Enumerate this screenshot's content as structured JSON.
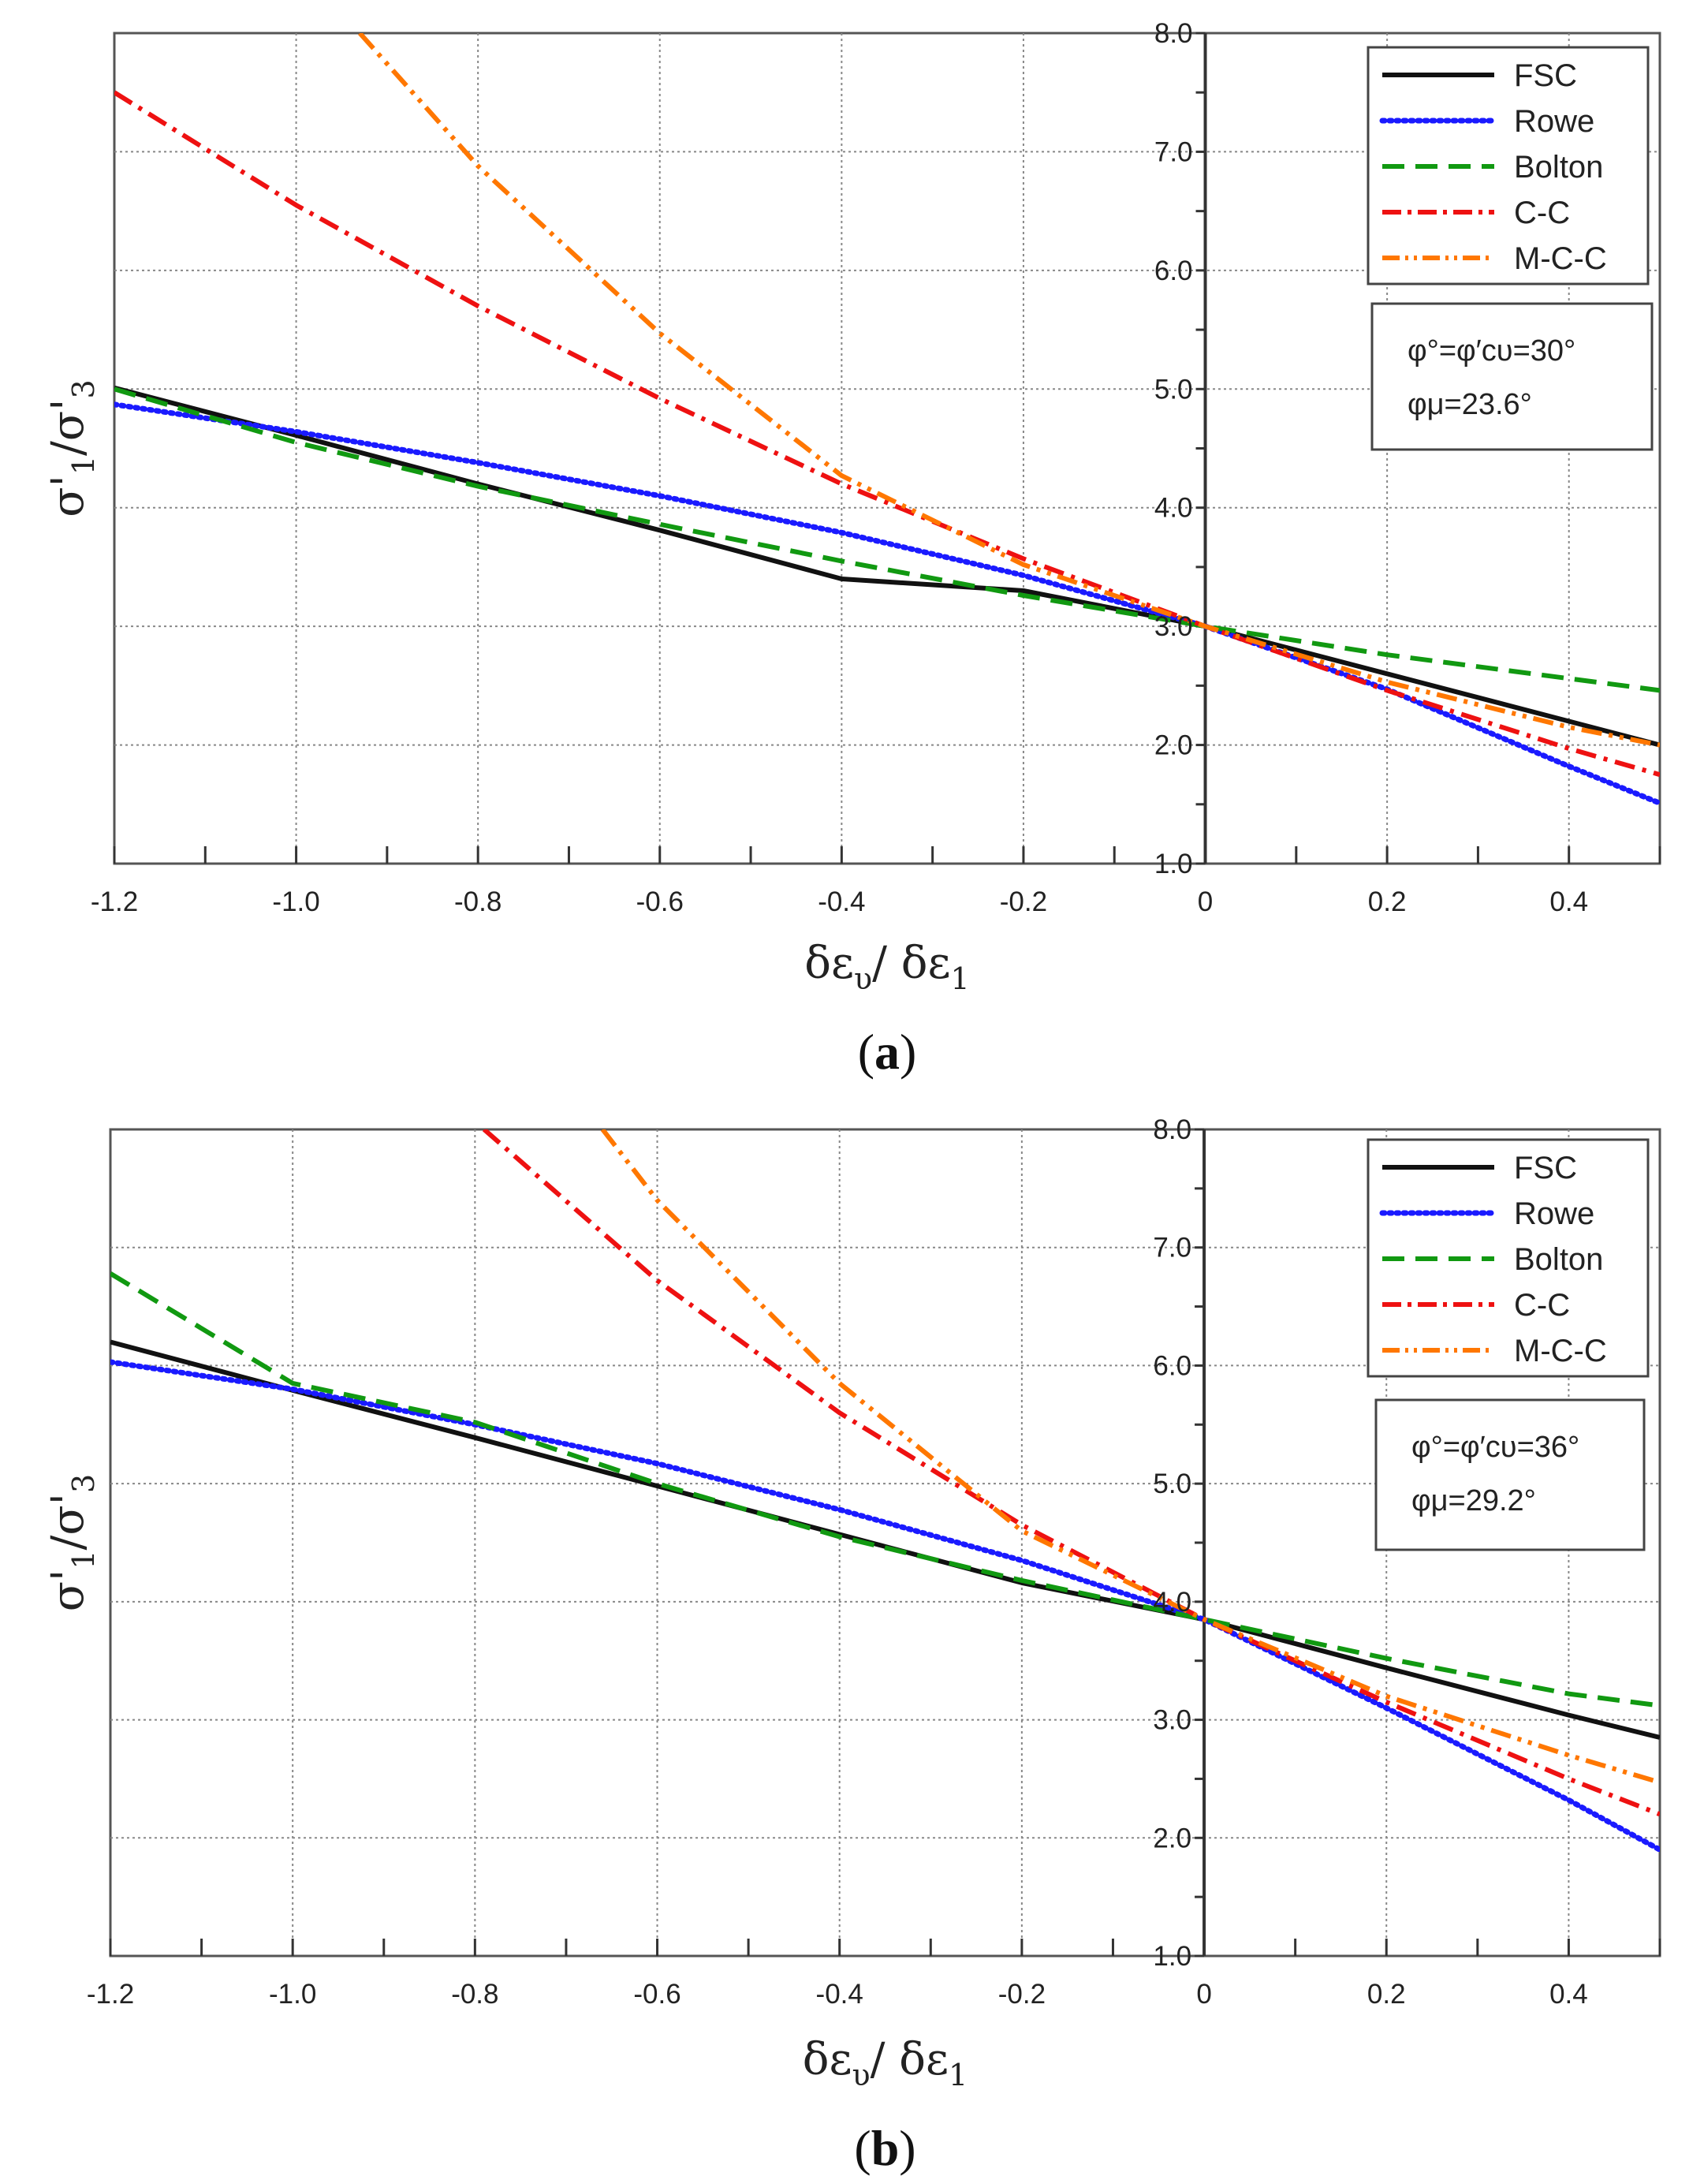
{
  "chart_data": [
    {
      "type": "line",
      "panel_label": "a",
      "xlabel": "δε",
      "xlabel_sub1": "υ",
      "xlabel_mid": "/ δε",
      "xlabel_sub2": "1",
      "ylabel": "σ'",
      "ylabel_sub1": "1",
      "ylabel_mid": "/σ'",
      "ylabel_sub2": "3",
      "xlim": [
        -1.2,
        0.5
      ],
      "ylim": [
        1.0,
        8.0
      ],
      "x_ticks": [
        -1.2,
        -1.0,
        -0.8,
        -0.6,
        -0.4,
        -0.2,
        0,
        0.2,
        0.4
      ],
      "x_tick_labels": [
        "-1.2",
        "-1.0",
        "-0.8",
        "-0.6",
        "-0.4",
        "-0.2",
        "0",
        "0.2",
        "0.4"
      ],
      "y_ticks": [
        1,
        2,
        3,
        4,
        5,
        6,
        7,
        8
      ],
      "y_tick_labels": [
        "1.0",
        "2.0",
        "3.0",
        "4.0",
        "5.0",
        "6.0",
        "7.0",
        "8.0"
      ],
      "grid": true,
      "legend_position": "top-right",
      "info_line1": "φ°=φ′cυ=30°",
      "info_line2": "φμ=23.6°",
      "series": [
        {
          "name": "FSC",
          "color": "#111111",
          "style": "solid",
          "x": [
            -1.2,
            -1.0,
            -0.8,
            -0.6,
            -0.4,
            -0.2,
            0,
            0.2,
            0.4,
            0.5
          ],
          "y": [
            5.01,
            4.61,
            4.2,
            3.81,
            3.4,
            3.3,
            3.0,
            2.6,
            2.2,
            2.0
          ]
        },
        {
          "name": "Rowe",
          "color": "#1a1aff",
          "style": "dotted",
          "x": [
            -1.2,
            -1.0,
            -0.8,
            -0.6,
            -0.4,
            -0.2,
            0,
            0.2,
            0.4,
            0.5
          ],
          "y": [
            4.87,
            4.64,
            4.38,
            4.1,
            3.79,
            3.43,
            3.0,
            2.47,
            1.82,
            1.51
          ]
        },
        {
          "name": "Bolton",
          "color": "#119911",
          "style": "dashed",
          "x": [
            -1.2,
            -1.0,
            -0.8,
            -0.6,
            -0.4,
            -0.2,
            0,
            0.2,
            0.4,
            0.5
          ],
          "y": [
            5.0,
            4.55,
            4.18,
            3.86,
            3.55,
            3.26,
            3.0,
            2.76,
            2.56,
            2.46
          ]
        },
        {
          "name": "C-C",
          "color": "#ee1111",
          "style": "dashdot",
          "x": [
            -1.2,
            -1.0,
            -0.8,
            -0.6,
            -0.4,
            -0.2,
            0,
            0.2,
            0.4,
            0.5
          ],
          "y": [
            7.5,
            6.55,
            5.7,
            4.92,
            4.2,
            3.57,
            3.0,
            2.46,
            1.97,
            1.75
          ]
        },
        {
          "name": "M-C-C",
          "color": "#ff7700",
          "style": "dashdotdot",
          "x": [
            -0.93,
            -0.8,
            -0.6,
            -0.4,
            -0.2,
            0,
            0.2,
            0.4,
            0.5
          ],
          "y": [
            8.0,
            6.88,
            5.47,
            4.27,
            3.52,
            3.0,
            2.53,
            2.15,
            2.0
          ]
        }
      ]
    },
    {
      "type": "line",
      "panel_label": "b",
      "xlabel": "δε",
      "xlabel_sub1": "υ",
      "xlabel_mid": "/ δε",
      "xlabel_sub2": "1",
      "ylabel": "σ'",
      "ylabel_sub1": "1",
      "ylabel_mid": "/σ'",
      "ylabel_sub2": "3",
      "xlim": [
        -1.2,
        0.5
      ],
      "ylim": [
        1.0,
        8.0
      ],
      "x_ticks": [
        -1.2,
        -1.0,
        -0.8,
        -0.6,
        -0.4,
        -0.2,
        0,
        0.2,
        0.4
      ],
      "x_tick_labels": [
        "-1.2",
        "-1.0",
        "-0.8",
        "-0.6",
        "-0.4",
        "-0.2",
        "0",
        "0.2",
        "0.4"
      ],
      "y_ticks": [
        1,
        2,
        3,
        4,
        5,
        6,
        7,
        8
      ],
      "y_tick_labels": [
        "1.0",
        "2.0",
        "3.0",
        "4.0",
        "5.0",
        "6.0",
        "7.0",
        "8.0"
      ],
      "grid": true,
      "legend_position": "top-right",
      "info_line1": "φ°=φ′cυ=36°",
      "info_line2": "φμ=29.2°",
      "series": [
        {
          "name": "FSC",
          "color": "#111111",
          "style": "solid",
          "x": [
            -1.2,
            -1.0,
            -0.8,
            -0.6,
            -0.4,
            -0.2,
            0,
            0.2,
            0.4,
            0.5
          ],
          "y": [
            6.2,
            5.79,
            5.39,
            4.98,
            4.57,
            4.16,
            3.85,
            3.44,
            3.04,
            2.85
          ]
        },
        {
          "name": "Rowe",
          "color": "#1a1aff",
          "style": "dotted",
          "x": [
            -1.2,
            -1.0,
            -0.8,
            -0.6,
            -0.4,
            -0.2,
            0,
            0.2,
            0.4,
            0.5
          ],
          "y": [
            6.03,
            5.8,
            5.5,
            5.17,
            4.78,
            4.35,
            3.85,
            3.1,
            2.32,
            1.9
          ]
        },
        {
          "name": "Bolton",
          "color": "#119911",
          "style": "dashed",
          "x": [
            -1.2,
            -1.0,
            -0.8,
            -0.6,
            -0.4,
            -0.2,
            0,
            0.2,
            0.4,
            0.5
          ],
          "y": [
            6.78,
            5.85,
            5.52,
            5.0,
            4.55,
            4.18,
            3.85,
            3.52,
            3.22,
            3.12
          ]
        },
        {
          "name": "C-C",
          "color": "#ee1111",
          "style": "dashdot",
          "x": [
            -0.79,
            -0.6,
            -0.4,
            -0.2,
            0,
            0.2,
            0.4,
            0.5
          ],
          "y": [
            8.0,
            6.72,
            5.6,
            4.65,
            3.85,
            3.15,
            2.5,
            2.2
          ]
        },
        {
          "name": "M-C-C",
          "color": "#ff7700",
          "style": "dashdotdot",
          "x": [
            -0.66,
            -0.6,
            -0.4,
            -0.2,
            0,
            0.2,
            0.4,
            0.5
          ],
          "y": [
            8.0,
            7.4,
            5.85,
            4.6,
            3.85,
            3.2,
            2.7,
            2.47
          ]
        }
      ]
    }
  ]
}
